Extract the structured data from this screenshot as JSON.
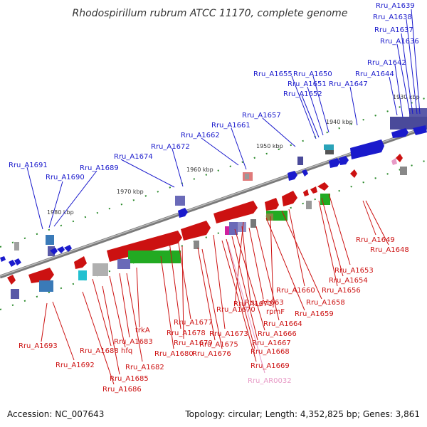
{
  "title": "Rhodospirillum rubrum ATCC 11170, complete genome",
  "footer": {
    "accession": "Accession: NC_007643",
    "topology": "Topology: circular; Length: 4,352,825 bp; Genes: 3,861"
  },
  "kbp_labels": [
    "1930 kbp",
    "1940 kbp",
    "1950 kbp",
    "1960 kbp",
    "1970 kbp",
    "1980 kbp"
  ],
  "labels_top": [
    "Rru_A1639",
    "Rru_A1638",
    "Rru_A1637",
    "Rru_A1636",
    "Rru_A1642",
    "Rru_A1644",
    "Rru_A1655",
    "Rru_A1650",
    "Rru_A1651",
    "Rru_A1652",
    "Rru_A1647",
    "Rru_A1657",
    "Rru_A1661",
    "Rru_A1662",
    "Rru_A1672",
    "Rru_A1674",
    "Rru_A1691",
    "Rru_A1689",
    "Rru_A1690"
  ],
  "labels_bottom": [
    "Rru_A1649",
    "Rru_A1648",
    "Rru_A1653",
    "Rru_A1654",
    "Rru_A1656",
    "Rru_A1660",
    "Rru_A1658",
    "rpmF",
    "Rru_A1659",
    "Rru_A1670",
    "Rru_A1664",
    "Rru_A1677",
    "Rru_A1671",
    "Rru_A1663",
    "Rru_A1666",
    "Rru_A1673",
    "Rru_A1667",
    "Rru_A1678",
    "Rru_A1668",
    "trkA",
    "Rru_A1675",
    "Rru_A1679",
    "Rru_A1683",
    "Rru_A1676",
    "Rru_A1669",
    "Rru_A1688",
    "hfq",
    "Rru_A1680",
    "Rru_A1682",
    "Rru_A1693",
    "Rru_A1692",
    "Rru_A1685",
    "Rru_A1686",
    "Rru_AR0032"
  ],
  "colors": {
    "blue": "#1a1acc",
    "red": "#cc1111",
    "pink": "#e79ac6",
    "backbone": "#8a8a8a",
    "ticks": "#1e8a1e"
  }
}
